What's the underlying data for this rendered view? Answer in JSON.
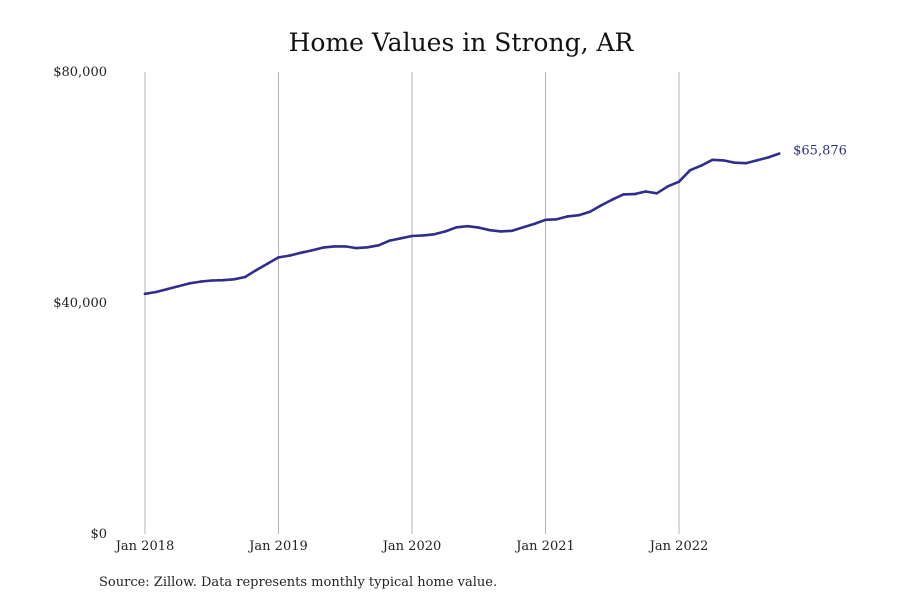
{
  "chart_data": {
    "type": "line",
    "title": "Home Values in Strong, AR",
    "xlabel": "",
    "ylabel": "",
    "ylim": [
      0,
      80000
    ],
    "y_ticks": [
      {
        "value": 0,
        "label": "$0"
      },
      {
        "value": 40000,
        "label": "$40,000"
      },
      {
        "value": 80000,
        "label": "$80,000"
      }
    ],
    "x_ticks": [
      {
        "value": "2018-01",
        "label": "Jan 2018"
      },
      {
        "value": "2019-01",
        "label": "Jan 2019"
      },
      {
        "value": "2020-01",
        "label": "Jan 2020"
      },
      {
        "value": "2021-01",
        "label": "Jan 2021"
      },
      {
        "value": "2022-01",
        "label": "Jan 2022"
      }
    ],
    "grid": "vertical",
    "series": [
      {
        "color": "#2e2e8c",
        "end_label": "$65,876",
        "x": [
          "2018-01",
          "2018-02",
          "2018-03",
          "2018-04",
          "2018-05",
          "2018-06",
          "2018-07",
          "2018-08",
          "2018-09",
          "2018-10",
          "2018-11",
          "2018-12",
          "2019-01",
          "2019-02",
          "2019-03",
          "2019-04",
          "2019-05",
          "2019-06",
          "2019-07",
          "2019-08",
          "2019-09",
          "2019-10",
          "2019-11",
          "2019-12",
          "2020-01",
          "2020-02",
          "2020-03",
          "2020-04",
          "2020-05",
          "2020-06",
          "2020-07",
          "2020-08",
          "2020-09",
          "2020-10",
          "2020-11",
          "2020-12",
          "2021-01",
          "2021-02",
          "2021-03",
          "2021-04",
          "2021-05",
          "2021-06",
          "2021-07",
          "2021-08",
          "2021-09",
          "2021-10",
          "2021-11",
          "2021-12",
          "2022-01",
          "2022-02",
          "2022-03",
          "2022-04",
          "2022-05",
          "2022-06",
          "2022-07",
          "2022-08",
          "2022-09",
          "2022-10"
        ],
        "values": [
          41600,
          41900,
          42400,
          42900,
          43400,
          43700,
          43900,
          43950,
          44100,
          44500,
          45700,
          46800,
          47900,
          48200,
          48700,
          49100,
          49600,
          49800,
          49800,
          49500,
          49650,
          50000,
          50800,
          51200,
          51600,
          51700,
          51900,
          52400,
          53100,
          53300,
          53050,
          52600,
          52400,
          52500,
          53100,
          53700,
          54400,
          54500,
          55000,
          55200,
          55800,
          56900,
          57900,
          58800,
          58850,
          59300,
          59000,
          60200,
          61000,
          63000,
          63800,
          64800,
          64700,
          64300,
          64200,
          64700,
          65200,
          65876
        ]
      }
    ]
  },
  "source_note": "Source: Zillow. Data represents monthly typical home value."
}
